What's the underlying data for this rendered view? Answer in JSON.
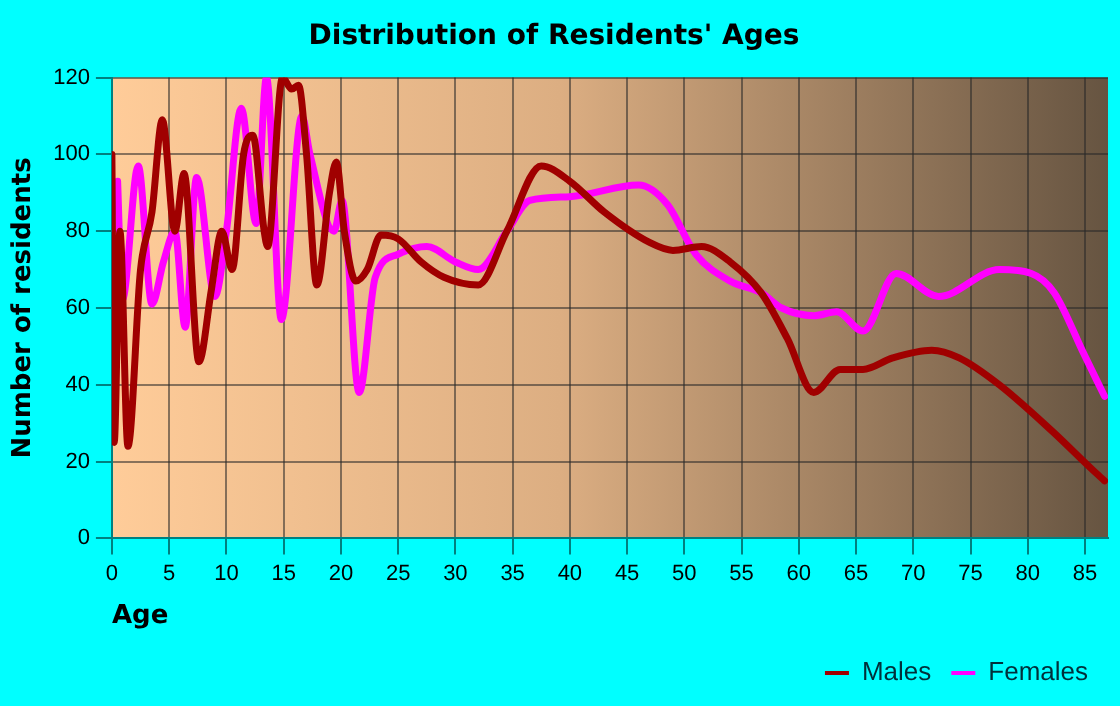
{
  "chart_data": {
    "type": "line",
    "title": "Distribution of Residents' Ages",
    "xlabel": "Age",
    "ylabel": "Number of residents",
    "xlim": [
      0,
      87
    ],
    "xticks": [
      0,
      5,
      10,
      15,
      20,
      25,
      30,
      35,
      40,
      45,
      50,
      55,
      60,
      65,
      70,
      75,
      80,
      85
    ],
    "ylim": [
      0,
      120
    ],
    "yticks": [
      0,
      20,
      40,
      60,
      80,
      100,
      120
    ],
    "grid": true,
    "legend": "bottom right",
    "marker": "none",
    "line_style": "solid",
    "series": [
      {
        "name": "Males",
        "color": "#a00000",
        "x": [
          0,
          0.2,
          0.7,
          1.4,
          2.5,
          3.5,
          4.4,
          5.5,
          6.3,
          7.6,
          8.7,
          9.6,
          10.5,
          11.5,
          12.3,
          13.3,
          13.6,
          14.9,
          15.7,
          16.3,
          17,
          17.9,
          19,
          19.6,
          20.3,
          21.3,
          22.3,
          23.5,
          25,
          27,
          29,
          32,
          34.5,
          37.5,
          40,
          43,
          47,
          49,
          51.5,
          54,
          56.7,
          59,
          61.3,
          63.6,
          65.6,
          68.2,
          71.6,
          74,
          77.5,
          82.1,
          85.6,
          86.7
        ],
        "values": [
          100,
          25,
          80,
          24,
          70,
          85,
          109,
          80,
          95,
          46,
          65,
          80,
          70,
          100,
          105,
          80,
          76,
          120,
          117,
          118,
          100,
          66,
          90,
          98,
          80,
          67,
          70,
          79,
          78,
          72,
          68,
          66,
          80,
          97,
          93,
          85,
          77,
          75,
          76,
          72,
          64,
          52,
          38,
          44,
          44,
          47,
          49,
          47,
          40,
          28,
          18,
          15
        ]
      },
      {
        "name": "Females",
        "color": "#ff00ff",
        "x": [
          0.5,
          0.9,
          2.3,
          3.5,
          4.5,
          5.5,
          6.4,
          7.4,
          9,
          10,
          11.3,
          12.6,
          13.5,
          14.8,
          16.6,
          17.3,
          19.4,
          20.1,
          21.6,
          23,
          25,
          27.5,
          30,
          32,
          34.5,
          36.5,
          40,
          46,
          48.5,
          51,
          54,
          56.7,
          58.5,
          61.3,
          63.3,
          65.6,
          68.5,
          72.2,
          77.5,
          80.3,
          82.3,
          84.9,
          86.7
        ],
        "values": [
          93,
          62,
          97,
          61,
          72,
          80,
          55,
          94,
          63,
          80,
          112,
          82,
          120,
          57,
          110,
          100,
          80,
          88,
          38,
          68,
          74,
          76,
          72,
          70,
          80,
          88,
          89,
          92,
          87,
          74,
          67,
          64,
          60,
          58,
          59,
          54,
          69,
          63,
          70,
          69,
          64,
          48,
          37
        ]
      }
    ]
  }
}
